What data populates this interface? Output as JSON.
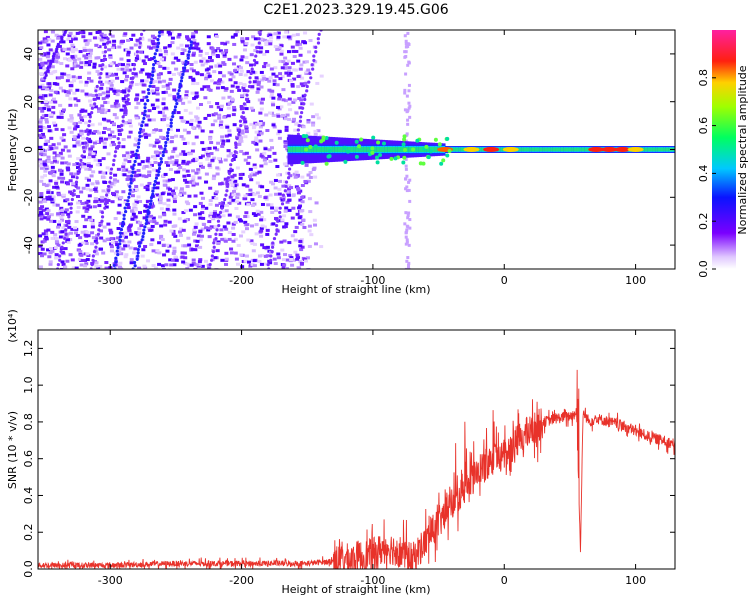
{
  "title": "C2E1.2023.329.19.45.G06",
  "colors": {
    "snr_line": "#e8322a",
    "ridge_dots": "#2222ff"
  },
  "chart_data": [
    {
      "type": "heatmap",
      "xlabel": "Height of straight line (km)",
      "ylabel": "Frequency (Hz)",
      "xlim": [
        -355,
        130
      ],
      "ylim": [
        -50,
        50
      ],
      "xticks": [
        "-300",
        "-200",
        "-100",
        "0",
        "100"
      ],
      "yticks": [
        "-40",
        "-20",
        "0",
        "20",
        "40"
      ],
      "colorbar": {
        "label": "Normalized spectral amplitude",
        "range": [
          0,
          1
        ],
        "ticks": [
          "0.0",
          "0.2",
          "0.4",
          "0.6",
          "0.8"
        ]
      }
    },
    {
      "type": "line",
      "xlabel": "Height of straight line (km)",
      "ylabel": "SNR (10 * v/v)",
      "y_multiplier": "(x10⁴)",
      "xlim": [
        -355,
        130
      ],
      "ylim": [
        0,
        1.3
      ],
      "xticks": [
        "-300",
        "-200",
        "-100",
        "0",
        "100"
      ],
      "yticks": [
        "0.0",
        "0.2",
        "0.4",
        "0.6",
        "0.8",
        "1.0",
        "1.2"
      ],
      "series": [
        {
          "x": [
            -355,
            -300,
            -250,
            -200,
            -150,
            -120,
            -100,
            -90,
            -80,
            -70,
            -60,
            -50,
            -40,
            -30,
            -20,
            -10,
            0,
            10,
            20,
            30,
            40,
            50,
            55,
            58,
            60,
            65,
            70,
            80,
            90,
            100,
            110,
            120,
            130
          ],
          "values": [
            0.02,
            0.02,
            0.03,
            0.03,
            0.03,
            0.05,
            0.08,
            0.12,
            0.1,
            0.05,
            0.15,
            0.25,
            0.35,
            0.45,
            0.52,
            0.6,
            0.62,
            0.7,
            0.75,
            0.8,
            0.82,
            0.83,
            0.85,
            0.1,
            0.85,
            0.8,
            0.82,
            0.8,
            0.78,
            0.75,
            0.72,
            0.7,
            0.68
          ]
        }
      ]
    }
  ]
}
